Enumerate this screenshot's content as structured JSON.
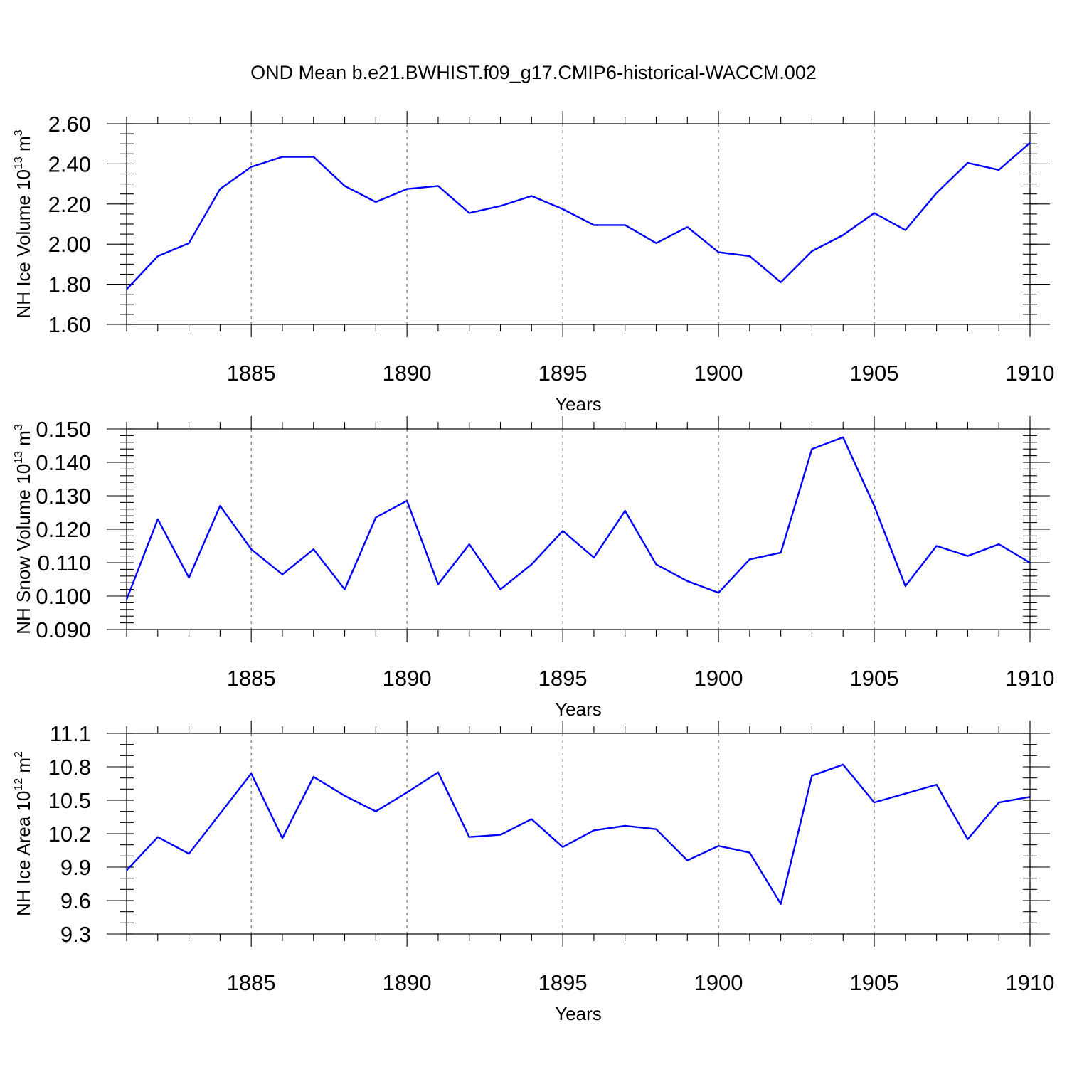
{
  "figure": {
    "title": "OND Mean b.e21.BWHIST.f09_g17.CMIP6-historical-WACCM.002"
  },
  "chart_data": [
    {
      "type": "line",
      "xlabel": "Years",
      "ylabel": {
        "text": "NH Ice Volume 10",
        "exp": "13",
        "unit": " m",
        "unit_exp": "3"
      },
      "xlim": [
        1881,
        1910
      ],
      "ylim": [
        1.6,
        2.6
      ],
      "y_ticks": [
        "1.60",
        "1.80",
        "2.00",
        "2.20",
        "2.40",
        "2.60"
      ],
      "y_minor_step": 0.05,
      "x_ticks": [
        "1885",
        "1890",
        "1895",
        "1900",
        "1905",
        "1910"
      ],
      "grid": "x-major-dashed",
      "x": [
        1881,
        1882,
        1883,
        1884,
        1885,
        1886,
        1887,
        1888,
        1889,
        1890,
        1891,
        1892,
        1893,
        1894,
        1895,
        1896,
        1897,
        1898,
        1899,
        1900,
        1901,
        1902,
        1903,
        1904,
        1905,
        1906,
        1907,
        1908,
        1909,
        1910
      ],
      "values": [
        1.775,
        1.94,
        2.005,
        2.275,
        2.385,
        2.435,
        2.435,
        2.29,
        2.21,
        2.275,
        2.29,
        2.155,
        2.19,
        2.24,
        2.175,
        2.095,
        2.095,
        2.005,
        2.085,
        1.96,
        1.94,
        1.81,
        1.965,
        2.045,
        2.155,
        2.07,
        2.255,
        2.405,
        2.37,
        2.505
      ]
    },
    {
      "type": "line",
      "xlabel": "Years",
      "ylabel": {
        "text": "NH Snow Volume 10",
        "exp": "13",
        "unit": " m",
        "unit_exp": "3"
      },
      "xlim": [
        1881,
        1910
      ],
      "ylim": [
        0.09,
        0.15
      ],
      "y_ticks": [
        "0.090",
        "0.100",
        "0.110",
        "0.120",
        "0.130",
        "0.140",
        "0.150"
      ],
      "y_minor_step": 0.002,
      "x_ticks": [
        "1885",
        "1890",
        "1895",
        "1900",
        "1905",
        "1910"
      ],
      "grid": "x-major-dashed",
      "x": [
        1881,
        1882,
        1883,
        1884,
        1885,
        1886,
        1887,
        1888,
        1889,
        1890,
        1891,
        1892,
        1893,
        1894,
        1895,
        1896,
        1897,
        1898,
        1899,
        1900,
        1901,
        1902,
        1903,
        1904,
        1905,
        1906,
        1907,
        1908,
        1909,
        1910
      ],
      "values": [
        0.099,
        0.123,
        0.1055,
        0.127,
        0.114,
        0.1065,
        0.114,
        0.102,
        0.1235,
        0.1285,
        0.1035,
        0.1155,
        0.102,
        0.1095,
        0.1195,
        0.1115,
        0.1255,
        0.1095,
        0.1045,
        0.101,
        0.111,
        0.113,
        0.144,
        0.1475,
        0.127,
        0.103,
        0.115,
        0.112,
        0.1155,
        0.11
      ]
    },
    {
      "type": "line",
      "xlabel": "Years",
      "ylabel": {
        "text": "NH Ice Area 10",
        "exp": "12",
        "unit": " m",
        "unit_exp": "2"
      },
      "xlim": [
        1881,
        1910
      ],
      "ylim": [
        9.3,
        11.1
      ],
      "y_ticks": [
        "9.3",
        "9.6",
        "9.9",
        "10.2",
        "10.5",
        "10.8",
        "11.1"
      ],
      "y_minor_step": 0.1,
      "x_ticks": [
        "1885",
        "1890",
        "1895",
        "1900",
        "1905",
        "1910"
      ],
      "grid": "x-major-dashed",
      "x": [
        1881,
        1882,
        1883,
        1884,
        1885,
        1886,
        1887,
        1888,
        1889,
        1890,
        1891,
        1892,
        1893,
        1894,
        1895,
        1896,
        1897,
        1898,
        1899,
        1900,
        1901,
        1902,
        1903,
        1904,
        1905,
        1906,
        1907,
        1908,
        1909,
        1910
      ],
      "values": [
        9.87,
        10.17,
        10.02,
        10.38,
        10.74,
        10.16,
        10.71,
        10.54,
        10.4,
        10.57,
        10.75,
        10.17,
        10.19,
        10.33,
        10.08,
        10.23,
        10.27,
        10.24,
        9.96,
        10.09,
        10.03,
        9.57,
        10.72,
        10.82,
        10.48,
        10.56,
        10.64,
        10.15,
        10.48,
        10.53
      ]
    }
  ]
}
